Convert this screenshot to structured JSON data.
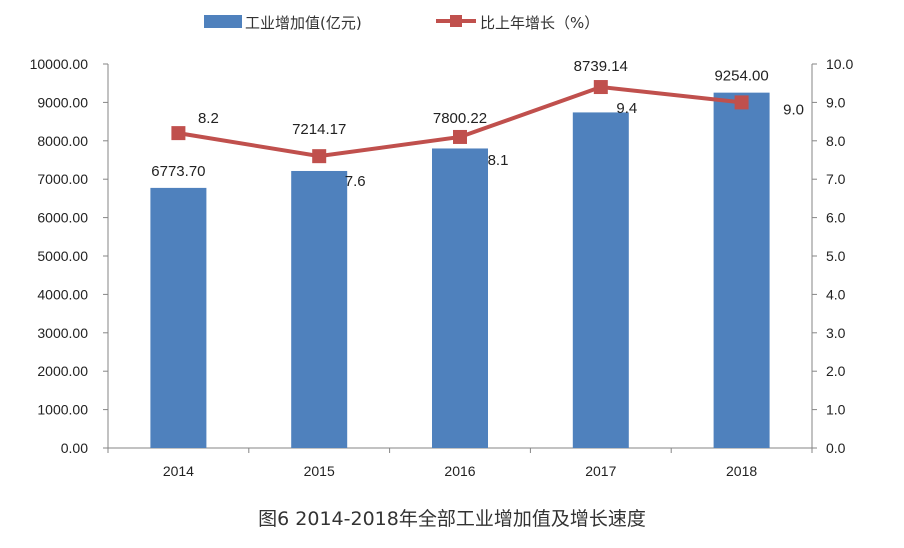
{
  "chart_data": {
    "type": "bar+line",
    "categories": [
      "2014",
      "2015",
      "2016",
      "2017",
      "2018"
    ],
    "series": [
      {
        "name": "工业增加值(亿元)",
        "type": "bar",
        "axis": "left",
        "values": [
          6773.7,
          7214.17,
          7800.22,
          8739.14,
          9254.0
        ],
        "labels": [
          "6773.70",
          "7214.17",
          "7800.22",
          "8739.14",
          "9254.00"
        ],
        "color": "#4F81BD"
      },
      {
        "name": "比上年增长（%）",
        "type": "line",
        "axis": "right",
        "values": [
          8.2,
          7.6,
          8.1,
          9.4,
          9.0
        ],
        "labels": [
          "8.2",
          "7.6",
          "8.1",
          "9.4",
          "9.0"
        ],
        "color": "#C0504D"
      }
    ],
    "left_axis": {
      "ylim": [
        0,
        10000
      ],
      "ticks": [
        "0.00",
        "1000.00",
        "2000.00",
        "3000.00",
        "4000.00",
        "5000.00",
        "6000.00",
        "7000.00",
        "8000.00",
        "9000.00",
        "10000.00"
      ]
    },
    "right_axis": {
      "ylim": [
        0,
        10
      ],
      "ticks": [
        "0.0",
        "1.0",
        "2.0",
        "3.0",
        "4.0",
        "5.0",
        "6.0",
        "7.0",
        "8.0",
        "9.0",
        "10.0"
      ]
    },
    "grid": false,
    "legend": "top",
    "caption": "图6 2014-2018年全部工业增加值及增长速度"
  }
}
